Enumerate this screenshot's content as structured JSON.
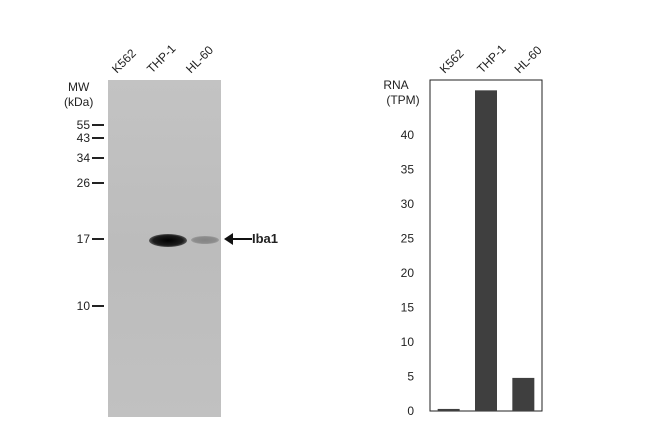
{
  "blot": {
    "lanes": [
      "K562",
      "THP-1",
      "HL-60"
    ],
    "mw_header": [
      "MW",
      "(kDa)"
    ],
    "markers": [
      "55",
      "43",
      "34",
      "26",
      "17",
      "10"
    ],
    "target": "Iba1",
    "band_intensity": [
      0,
      1.0,
      0.3
    ]
  },
  "chart_data": {
    "type": "bar",
    "categories": [
      "K562",
      "THP-1",
      "HL-60"
    ],
    "values": [
      0.3,
      46.5,
      4.8
    ],
    "ylabel": [
      "RNA",
      "(TPM)"
    ],
    "ylim": [
      0,
      48
    ],
    "yticks": [
      "0",
      "5",
      "10",
      "15",
      "20",
      "25",
      "30",
      "35",
      "40"
    ],
    "grid": false,
    "bar_color": "#3f3f3f"
  }
}
